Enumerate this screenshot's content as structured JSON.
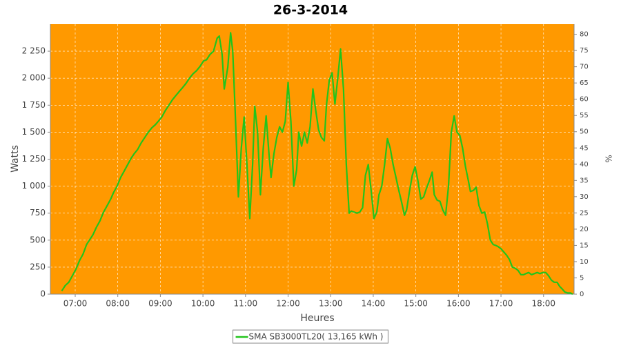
{
  "chart_data": {
    "type": "line",
    "title": "26-3-2014",
    "x_label": "Heures",
    "y_label": "Watts",
    "y2_label": "%",
    "x": [
      "06:41",
      "06:46",
      "06:51",
      "06:56",
      "07:01",
      "07:06",
      "07:11",
      "07:16",
      "07:20",
      "07:25",
      "07:30",
      "07:35",
      "07:40",
      "07:45",
      "07:50",
      "07:54",
      "07:59",
      "08:04",
      "08:09",
      "08:14",
      "08:19",
      "08:23",
      "08:28",
      "08:33",
      "08:38",
      "08:43",
      "08:48",
      "08:53",
      "08:57",
      "09:02",
      "09:07",
      "09:12",
      "09:17",
      "09:22",
      "09:27",
      "09:31",
      "09:36",
      "09:41",
      "09:46",
      "09:51",
      "09:56",
      "10:01",
      "10:05",
      "10:10",
      "10:15",
      "10:20",
      "10:23",
      "10:27",
      "10:30",
      "10:35",
      "10:39",
      "10:42",
      "10:46",
      "10:50",
      "10:54",
      "10:58",
      "11:02",
      "11:06",
      "11:10",
      "11:13",
      "11:17",
      "11:21",
      "11:25",
      "11:29",
      "11:33",
      "11:36",
      "11:40",
      "11:44",
      "11:48",
      "11:52",
      "11:56",
      "12:00",
      "12:04",
      "12:08",
      "12:12",
      "12:15",
      "12:19",
      "12:23",
      "12:27",
      "12:31",
      "12:35",
      "12:39",
      "12:43",
      "12:47",
      "12:51",
      "12:54",
      "12:58",
      "13:02",
      "13:06",
      "13:10",
      "13:14",
      "13:18",
      "13:22",
      "13:26",
      "13:29",
      "13:33",
      "13:37",
      "13:41",
      "13:45",
      "13:49",
      "13:53",
      "13:57",
      "14:01",
      "14:05",
      "14:08",
      "14:12",
      "14:16",
      "14:20",
      "14:24",
      "14:28",
      "14:32",
      "14:36",
      "14:40",
      "14:44",
      "14:47",
      "14:51",
      "14:55",
      "14:59",
      "15:03",
      "15:07",
      "15:11",
      "15:15",
      "15:19",
      "15:23",
      "15:26",
      "15:30",
      "15:34",
      "15:38",
      "15:42",
      "15:46",
      "15:50",
      "15:54",
      "15:58",
      "16:02",
      "16:06",
      "16:10",
      "16:14",
      "16:17",
      "16:21",
      "16:25",
      "16:29",
      "16:33",
      "16:37",
      "16:41",
      "16:45",
      "16:49",
      "16:53",
      "16:56",
      "17:00",
      "17:04",
      "17:08",
      "17:12",
      "17:16",
      "17:20",
      "17:24",
      "17:28",
      "17:32",
      "17:35",
      "17:39",
      "17:43",
      "17:47",
      "17:51",
      "17:55",
      "17:59",
      "18:03",
      "18:07",
      "18:11",
      "18:15",
      "18:19",
      "18:23",
      "18:26",
      "18:30",
      "18:34",
      "18:38",
      "18:41"
    ],
    "series": [
      {
        "name": "SMA SB3000TL20( 13,165 kWh )",
        "color": "#22c41c",
        "values": [
          30,
          80,
          110,
          170,
          230,
          310,
          370,
          460,
          500,
          550,
          620,
          680,
          760,
          820,
          880,
          940,
          1000,
          1080,
          1140,
          1200,
          1260,
          1300,
          1340,
          1400,
          1450,
          1500,
          1540,
          1570,
          1600,
          1640,
          1700,
          1750,
          1800,
          1840,
          1880,
          1910,
          1950,
          2000,
          2040,
          2070,
          2110,
          2160,
          2170,
          2220,
          2250,
          2370,
          2390,
          2220,
          1900,
          2100,
          2420,
          2250,
          1600,
          900,
          1350,
          1640,
          1200,
          700,
          1200,
          1740,
          1500,
          920,
          1350,
          1650,
          1300,
          1080,
          1300,
          1450,
          1550,
          1500,
          1600,
          1960,
          1600,
          1000,
          1150,
          1500,
          1370,
          1500,
          1400,
          1550,
          1900,
          1700,
          1520,
          1450,
          1420,
          1750,
          1980,
          2050,
          1760,
          2000,
          2270,
          1900,
          1200,
          750,
          770,
          760,
          750,
          760,
          800,
          1100,
          1200,
          960,
          700,
          760,
          920,
          1000,
          1200,
          1440,
          1350,
          1200,
          1080,
          960,
          850,
          730,
          780,
          950,
          1100,
          1180,
          1050,
          880,
          900,
          980,
          1050,
          1130,
          920,
          870,
          860,
          780,
          730,
          1000,
          1500,
          1650,
          1500,
          1470,
          1350,
          1180,
          1050,
          950,
          960,
          990,
          820,
          750,
          760,
          650,
          500,
          460,
          450,
          440,
          420,
          390,
          360,
          320,
          250,
          240,
          220,
          180,
          180,
          190,
          200,
          180,
          190,
          200,
          190,
          200,
          200,
          170,
          130,
          110,
          110,
          70,
          50,
          20,
          10,
          10,
          0
        ]
      }
    ],
    "xlim": [
      "06:25",
      "18:43"
    ],
    "xticks": [
      "07:00",
      "08:00",
      "09:00",
      "10:00",
      "11:00",
      "12:00",
      "13:00",
      "14:00",
      "15:00",
      "16:00",
      "17:00",
      "18:00"
    ],
    "ylim": [
      0,
      2500
    ],
    "yticks": [
      0,
      250,
      500,
      750,
      {
        "value": 1000,
        "label": "1 000"
      },
      {
        "value": 1250,
        "label": "1 250"
      },
      {
        "value": 1500,
        "label": "1 500"
      },
      {
        "value": 1750,
        "label": "1 750"
      },
      {
        "value": 2000,
        "label": "2 000"
      },
      {
        "value": 2250,
        "label": "2 250"
      }
    ],
    "y2lim": [
      0,
      83.1
    ],
    "y2ticks": [
      0,
      5,
      10,
      15,
      20,
      25,
      30,
      35,
      40,
      45,
      50,
      55,
      60,
      65,
      70,
      75,
      80
    ],
    "grid": true,
    "plot_color": "#ff9900",
    "legend": "bottom"
  }
}
